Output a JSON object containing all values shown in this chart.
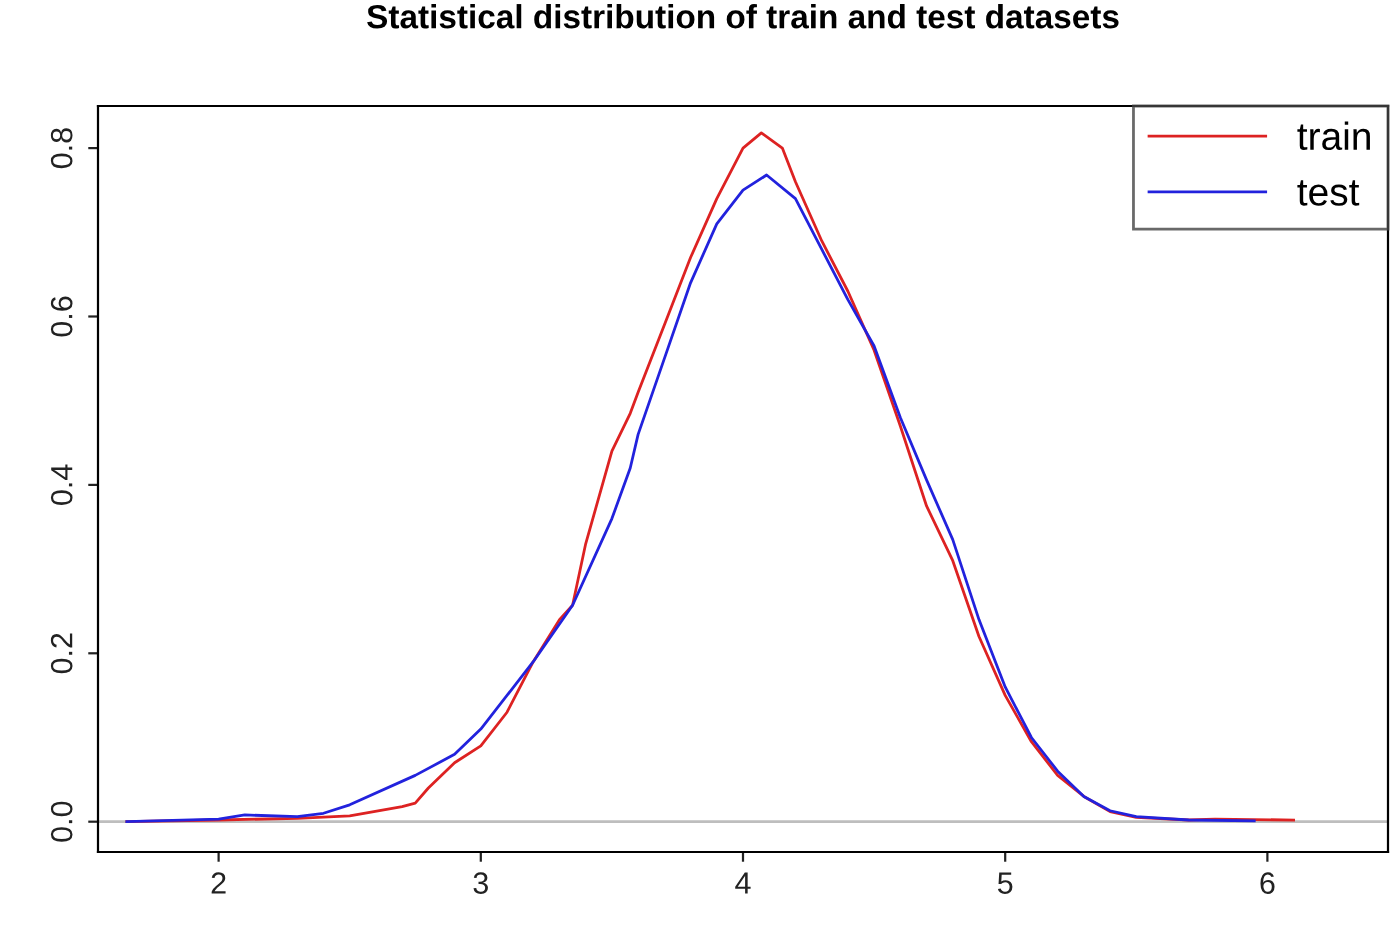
{
  "chart_data": {
    "type": "line",
    "title": "Statistical distribution of train and test datasets",
    "xlim": [
      1.54,
      6.46
    ],
    "ylim": [
      -0.036,
      0.85
    ],
    "xticks": [
      2,
      3,
      4,
      5,
      6
    ],
    "yticks": [
      {
        "value": 0,
        "label": "0.0"
      },
      0.2,
      0.4,
      0.6,
      0.8
    ],
    "grid": false,
    "legend": "top right",
    "marker": "none",
    "line_style": "solid",
    "ref_lines": [
      {
        "axis": "y",
        "value": 0,
        "color": "#bebebe"
      }
    ],
    "series": [
      {
        "name": "train",
        "color": "#dd2222",
        "x": [
          1.65,
          2.0,
          2.3,
          2.5,
          2.7,
          2.75,
          2.8,
          2.9,
          3.0,
          3.1,
          3.2,
          3.3,
          3.35,
          3.4,
          3.5,
          3.57,
          3.6,
          3.7,
          3.8,
          3.9,
          4.0,
          4.07,
          4.15,
          4.2,
          4.3,
          4.4,
          4.5,
          4.6,
          4.7,
          4.8,
          4.9,
          5.0,
          5.1,
          5.2,
          5.3,
          5.4,
          5.5,
          5.7,
          5.8,
          6.1
        ],
        "values": [
          0,
          0.002,
          0.004,
          0.007,
          0.018,
          0.022,
          0.04,
          0.07,
          0.09,
          0.13,
          0.19,
          0.24,
          0.257,
          0.33,
          0.44,
          0.485,
          0.51,
          0.59,
          0.67,
          0.74,
          0.8,
          0.818,
          0.8,
          0.76,
          0.69,
          0.63,
          0.56,
          0.47,
          0.375,
          0.31,
          0.22,
          0.15,
          0.095,
          0.055,
          0.03,
          0.012,
          0.005,
          0.002,
          0.003,
          0.002
        ]
      },
      {
        "name": "test",
        "color": "#2222dd",
        "x": [
          1.65,
          2.0,
          2.1,
          2.3,
          2.4,
          2.5,
          2.75,
          2.9,
          3.0,
          3.2,
          3.35,
          3.5,
          3.57,
          3.6,
          3.7,
          3.8,
          3.9,
          4.0,
          4.09,
          4.2,
          4.3,
          4.4,
          4.5,
          4.6,
          4.7,
          4.8,
          4.9,
          5.0,
          5.1,
          5.2,
          5.3,
          5.4,
          5.5,
          5.7,
          5.95
        ],
        "values": [
          0,
          0.003,
          0.008,
          0.006,
          0.01,
          0.02,
          0.055,
          0.08,
          0.11,
          0.19,
          0.257,
          0.36,
          0.42,
          0.46,
          0.55,
          0.64,
          0.71,
          0.75,
          0.768,
          0.74,
          0.68,
          0.62,
          0.565,
          0.48,
          0.406,
          0.335,
          0.24,
          0.16,
          0.1,
          0.06,
          0.03,
          0.013,
          0.006,
          0.002,
          0.001
        ]
      }
    ]
  }
}
